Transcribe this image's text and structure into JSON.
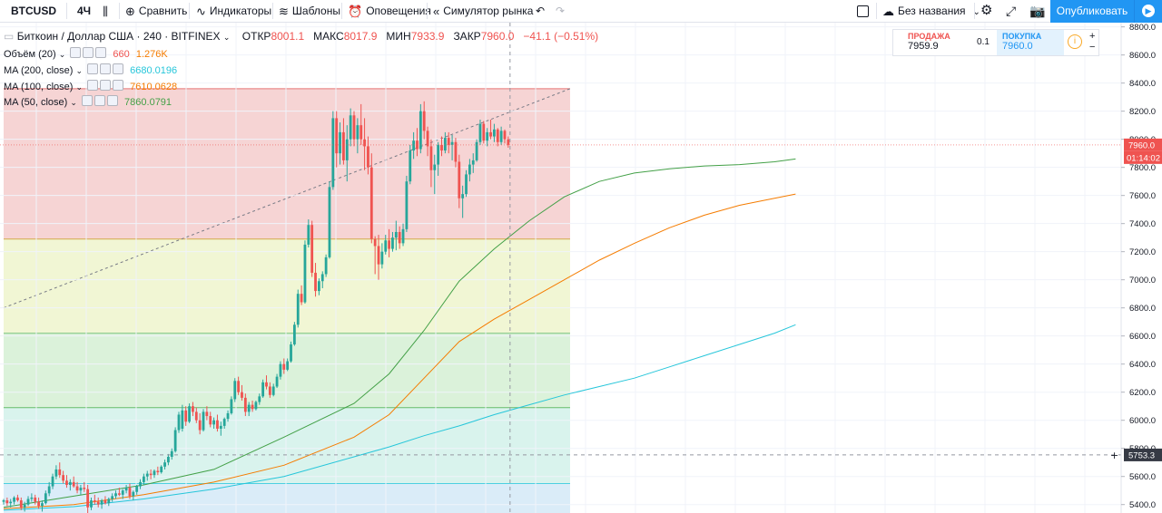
{
  "toolbar": {
    "symbol": "BTCUSD",
    "interval": "4Ч",
    "compare": "Сравнить",
    "indicators": "Индикаторы",
    "templates": "Шаблоны",
    "alerts": "Оповещения",
    "replay": "Симулятор рынка",
    "layout_name": "Без названия",
    "publish": "Опубликовать"
  },
  "legend": {
    "title": "Биткоин / Доллар США · 240 · BITFINEX",
    "open_label": "ОТКР",
    "open": "8001.1",
    "high_label": "МАКС",
    "high": "8017.9",
    "low_label": "МИН",
    "low": "7933.9",
    "close_label": "ЗАКР",
    "close": "7960.0",
    "change": "−41.1 (−0.51%)",
    "volume_label": "Объём (20)",
    "volume_value1": "660",
    "volume_value2": "1.276K",
    "ma200_label": "MA (200, close)",
    "ma200_value": "6680.0196",
    "ma100_label": "MA (100, close)",
    "ma100_value": "7610.0628",
    "ma50_label": "MA (50, close)",
    "ma50_value": "7860.0791"
  },
  "trade": {
    "sell_label": "ПРОДАЖА",
    "sell_value": "7959.9",
    "spread": "0.1",
    "buy_label": "ПОКУПКА",
    "buy_value": "7960.0"
  },
  "colors": {
    "up": "#26a69a",
    "down": "#ef5350",
    "ma200": "#26c6da",
    "ma100": "#f57c00",
    "ma50": "#43a047",
    "fib_red": "#f4cccc",
    "fib_yellow": "#eef5cd",
    "fib_green": "#d5f0d3",
    "fib_teal": "#d2f1ea",
    "fib_blue": "#d3e9f7"
  },
  "chart_data": {
    "type": "candlestick",
    "symbol": "BTCUSD",
    "interval": "240",
    "ylim": [
      5340,
      8830
    ],
    "y_ticks": [
      5400,
      5600,
      5800,
      6000,
      6200,
      6400,
      6600,
      6800,
      7000,
      7200,
      7400,
      7600,
      7800,
      8000,
      8200,
      8400,
      8600,
      8800
    ],
    "last_price": "7960.0",
    "countdown": "01:14:02",
    "crosshair_price": "5753.3",
    "fib_levels": [
      8360,
      7290,
      6620,
      6090,
      5550
    ],
    "candles": [
      [
        5420,
        5440,
        5400,
        5430
      ],
      [
        5430,
        5450,
        5390,
        5410
      ],
      [
        5410,
        5440,
        5380,
        5420
      ],
      [
        5420,
        5460,
        5400,
        5450
      ],
      [
        5450,
        5470,
        5420,
        5430
      ],
      [
        5430,
        5450,
        5360,
        5380
      ],
      [
        5380,
        5420,
        5350,
        5400
      ],
      [
        5400,
        5460,
        5390,
        5440
      ],
      [
        5440,
        5480,
        5420,
        5450
      ],
      [
        5450,
        5470,
        5400,
        5420
      ],
      [
        5420,
        5450,
        5370,
        5390
      ],
      [
        5390,
        5430,
        5350,
        5410
      ],
      [
        5410,
        5500,
        5400,
        5480
      ],
      [
        5480,
        5560,
        5460,
        5530
      ],
      [
        5530,
        5620,
        5510,
        5600
      ],
      [
        5600,
        5680,
        5580,
        5650
      ],
      [
        5650,
        5700,
        5590,
        5610
      ],
      [
        5610,
        5640,
        5550,
        5570
      ],
      [
        5570,
        5610,
        5520,
        5540
      ],
      [
        5540,
        5580,
        5500,
        5560
      ],
      [
        5560,
        5600,
        5520,
        5530
      ],
      [
        5530,
        5560,
        5480,
        5500
      ],
      [
        5500,
        5540,
        5470,
        5520
      ],
      [
        5520,
        5560,
        5490,
        5510
      ],
      [
        5510,
        5540,
        5340,
        5380
      ],
      [
        5380,
        5450,
        5360,
        5430
      ],
      [
        5430,
        5470,
        5400,
        5420
      ],
      [
        5420,
        5450,
        5380,
        5400
      ],
      [
        5400,
        5440,
        5370,
        5430
      ],
      [
        5430,
        5460,
        5400,
        5410
      ],
      [
        5410,
        5450,
        5390,
        5440
      ],
      [
        5440,
        5480,
        5420,
        5460
      ],
      [
        5460,
        5500,
        5440,
        5480
      ],
      [
        5480,
        5520,
        5460,
        5470
      ],
      [
        5470,
        5510,
        5440,
        5500
      ],
      [
        5500,
        5540,
        5480,
        5520
      ],
      [
        5520,
        5550,
        5440,
        5460
      ],
      [
        5460,
        5500,
        5430,
        5490
      ],
      [
        5490,
        5540,
        5470,
        5530
      ],
      [
        5530,
        5580,
        5510,
        5560
      ],
      [
        5560,
        5620,
        5540,
        5600
      ],
      [
        5600,
        5640,
        5570,
        5620
      ],
      [
        5620,
        5650,
        5580,
        5610
      ],
      [
        5610,
        5650,
        5590,
        5640
      ],
      [
        5640,
        5670,
        5610,
        5630
      ],
      [
        5630,
        5680,
        5620,
        5670
      ],
      [
        5670,
        5720,
        5650,
        5700
      ],
      [
        5700,
        5760,
        5680,
        5740
      ],
      [
        5740,
        5800,
        5720,
        5780
      ],
      [
        5780,
        5950,
        5770,
        5930
      ],
      [
        5930,
        6060,
        5910,
        6040
      ],
      [
        5940,
        6110,
        5920,
        6070
      ],
      [
        6070,
        6100,
        5960,
        5990
      ],
      [
        5990,
        6120,
        5980,
        6100
      ],
      [
        6100,
        6130,
        6030,
        6060
      ],
      [
        6060,
        6090,
        5980,
        6000
      ],
      [
        6000,
        6050,
        5900,
        5930
      ],
      [
        5930,
        6080,
        5920,
        6060
      ],
      [
        6060,
        6100,
        6000,
        6030
      ],
      [
        6030,
        6060,
        5950,
        5970
      ],
      [
        5970,
        6020,
        5940,
        6000
      ],
      [
        6000,
        6040,
        5920,
        5940
      ],
      [
        5940,
        5990,
        5890,
        5960
      ],
      [
        5960,
        6020,
        5940,
        6010
      ],
      [
        6010,
        6070,
        5990,
        6050
      ],
      [
        6050,
        6170,
        6040,
        6150
      ],
      [
        6150,
        6300,
        6130,
        6280
      ],
      [
        6280,
        6310,
        6180,
        6200
      ],
      [
        6200,
        6250,
        6140,
        6160
      ],
      [
        6160,
        6190,
        6030,
        6060
      ],
      [
        6060,
        6130,
        6030,
        6110
      ],
      [
        6110,
        6140,
        6060,
        6080
      ],
      [
        6080,
        6140,
        6070,
        6130
      ],
      [
        6130,
        6190,
        6110,
        6170
      ],
      [
        6170,
        6290,
        6160,
        6270
      ],
      [
        6270,
        6320,
        6220,
        6240
      ],
      [
        6240,
        6270,
        6160,
        6180
      ],
      [
        6180,
        6260,
        6170,
        6240
      ],
      [
        6240,
        6330,
        6230,
        6310
      ],
      [
        6310,
        6420,
        6290,
        6400
      ],
      [
        6400,
        6440,
        6330,
        6360
      ],
      [
        6360,
        6440,
        6350,
        6420
      ],
      [
        6420,
        6560,
        6410,
        6540
      ],
      [
        6540,
        6700,
        6530,
        6680
      ],
      [
        6680,
        6930,
        6660,
        6900
      ],
      [
        6900,
        6960,
        6820,
        6840
      ],
      [
        6840,
        7280,
        6830,
        7250
      ],
      [
        7250,
        7430,
        7230,
        7390
      ],
      [
        7390,
        7420,
        7020,
        7050
      ],
      [
        7050,
        7120,
        6880,
        6920
      ],
      [
        6920,
        7010,
        6890,
        6990
      ],
      [
        6990,
        7060,
        6940,
        7040
      ],
      [
        7040,
        7180,
        7020,
        7160
      ],
      [
        7160,
        7700,
        7150,
        7660
      ],
      [
        7660,
        8200,
        7640,
        8150
      ],
      [
        8150,
        8200,
        7800,
        7900
      ],
      [
        7900,
        8120,
        7820,
        8050
      ],
      [
        8050,
        8150,
        7820,
        7850
      ],
      [
        7850,
        8100,
        7700,
        8000
      ],
      [
        8000,
        8220,
        7950,
        8170
      ],
      [
        8170,
        8200,
        7950,
        8000
      ],
      [
        8000,
        8150,
        7900,
        8100
      ],
      [
        8100,
        8250,
        7960,
        8000
      ],
      [
        8000,
        8150,
        7780,
        7950
      ],
      [
        7950,
        8020,
        7750,
        7800
      ],
      [
        7800,
        7900,
        7260,
        7290
      ],
      [
        7290,
        7310,
        7040,
        7240
      ],
      [
        7240,
        7320,
        7000,
        7110
      ],
      [
        7110,
        7260,
        7080,
        7200
      ],
      [
        7200,
        7320,
        7180,
        7280
      ],
      [
        7280,
        7360,
        7160,
        7220
      ],
      [
        7220,
        7340,
        7200,
        7300
      ],
      [
        7300,
        7420,
        7210,
        7340
      ],
      [
        7340,
        7380,
        7220,
        7260
      ],
      [
        7260,
        7400,
        7240,
        7360
      ],
      [
        7360,
        7740,
        7340,
        7700
      ],
      [
        7700,
        7960,
        7680,
        7920
      ],
      [
        7920,
        8050,
        7860,
        7990
      ],
      [
        7990,
        8080,
        7880,
        7930
      ],
      [
        7930,
        8250,
        7900,
        8200
      ],
      [
        8200,
        8270,
        8000,
        8060
      ],
      [
        8060,
        8090,
        7880,
        7950
      ],
      [
        7950,
        8000,
        7660,
        7780
      ],
      [
        7780,
        7890,
        7610,
        7820
      ],
      [
        7820,
        7980,
        7740,
        7960
      ],
      [
        7960,
        8020,
        7880,
        7920
      ],
      [
        7920,
        8050,
        7900,
        8010
      ],
      [
        8010,
        8050,
        7900,
        7960
      ],
      [
        7960,
        8030,
        7850,
        7980
      ],
      [
        7980,
        8010,
        7800,
        7840
      ],
      [
        7840,
        7890,
        7510,
        7580
      ],
      [
        7580,
        7670,
        7440,
        7610
      ],
      [
        7610,
        7780,
        7590,
        7750
      ],
      [
        7750,
        7860,
        7700,
        7820
      ],
      [
        7820,
        7900,
        7760,
        7850
      ],
      [
        7850,
        8000,
        7840,
        7980
      ],
      [
        7980,
        8140,
        7960,
        8110
      ],
      [
        8110,
        8130,
        7970,
        7990
      ],
      [
        7990,
        8080,
        7950,
        8050
      ],
      [
        8050,
        8140,
        8000,
        8020
      ],
      [
        8020,
        8110,
        7980,
        8070
      ],
      [
        8070,
        8080,
        7950,
        7980
      ],
      [
        7980,
        8090,
        7960,
        8060
      ],
      [
        8060,
        8070,
        7970,
        8000
      ],
      [
        8000,
        8020,
        7940,
        7960
      ]
    ],
    "ma200": [
      [
        0,
        5360
      ],
      [
        20,
        5385
      ],
      [
        40,
        5440
      ],
      [
        60,
        5510
      ],
      [
        80,
        5600
      ],
      [
        100,
        5740
      ],
      [
        110,
        5810
      ],
      [
        120,
        5890
      ],
      [
        130,
        5960
      ],
      [
        140,
        6040
      ],
      [
        150,
        6110
      ],
      [
        160,
        6180
      ],
      [
        170,
        6240
      ],
      [
        180,
        6300
      ],
      [
        190,
        6380
      ],
      [
        200,
        6460
      ],
      [
        210,
        6540
      ],
      [
        220,
        6620
      ],
      [
        226,
        6680
      ]
    ],
    "ma100": [
      [
        0,
        5370
      ],
      [
        20,
        5400
      ],
      [
        40,
        5470
      ],
      [
        60,
        5560
      ],
      [
        80,
        5680
      ],
      [
        100,
        5880
      ],
      [
        110,
        6040
      ],
      [
        120,
        6300
      ],
      [
        130,
        6560
      ],
      [
        140,
        6720
      ],
      [
        150,
        6860
      ],
      [
        160,
        7000
      ],
      [
        170,
        7140
      ],
      [
        180,
        7260
      ],
      [
        190,
        7370
      ],
      [
        200,
        7460
      ],
      [
        210,
        7530
      ],
      [
        220,
        7580
      ],
      [
        226,
        7610
      ]
    ],
    "ma50": [
      [
        0,
        5380
      ],
      [
        20,
        5460
      ],
      [
        40,
        5540
      ],
      [
        60,
        5650
      ],
      [
        80,
        5880
      ],
      [
        100,
        6120
      ],
      [
        110,
        6330
      ],
      [
        120,
        6640
      ],
      [
        130,
        6990
      ],
      [
        140,
        7220
      ],
      [
        150,
        7420
      ],
      [
        160,
        7590
      ],
      [
        170,
        7700
      ],
      [
        180,
        7760
      ],
      [
        190,
        7790
      ],
      [
        200,
        7810
      ],
      [
        210,
        7820
      ],
      [
        220,
        7840
      ],
      [
        226,
        7860
      ]
    ]
  }
}
